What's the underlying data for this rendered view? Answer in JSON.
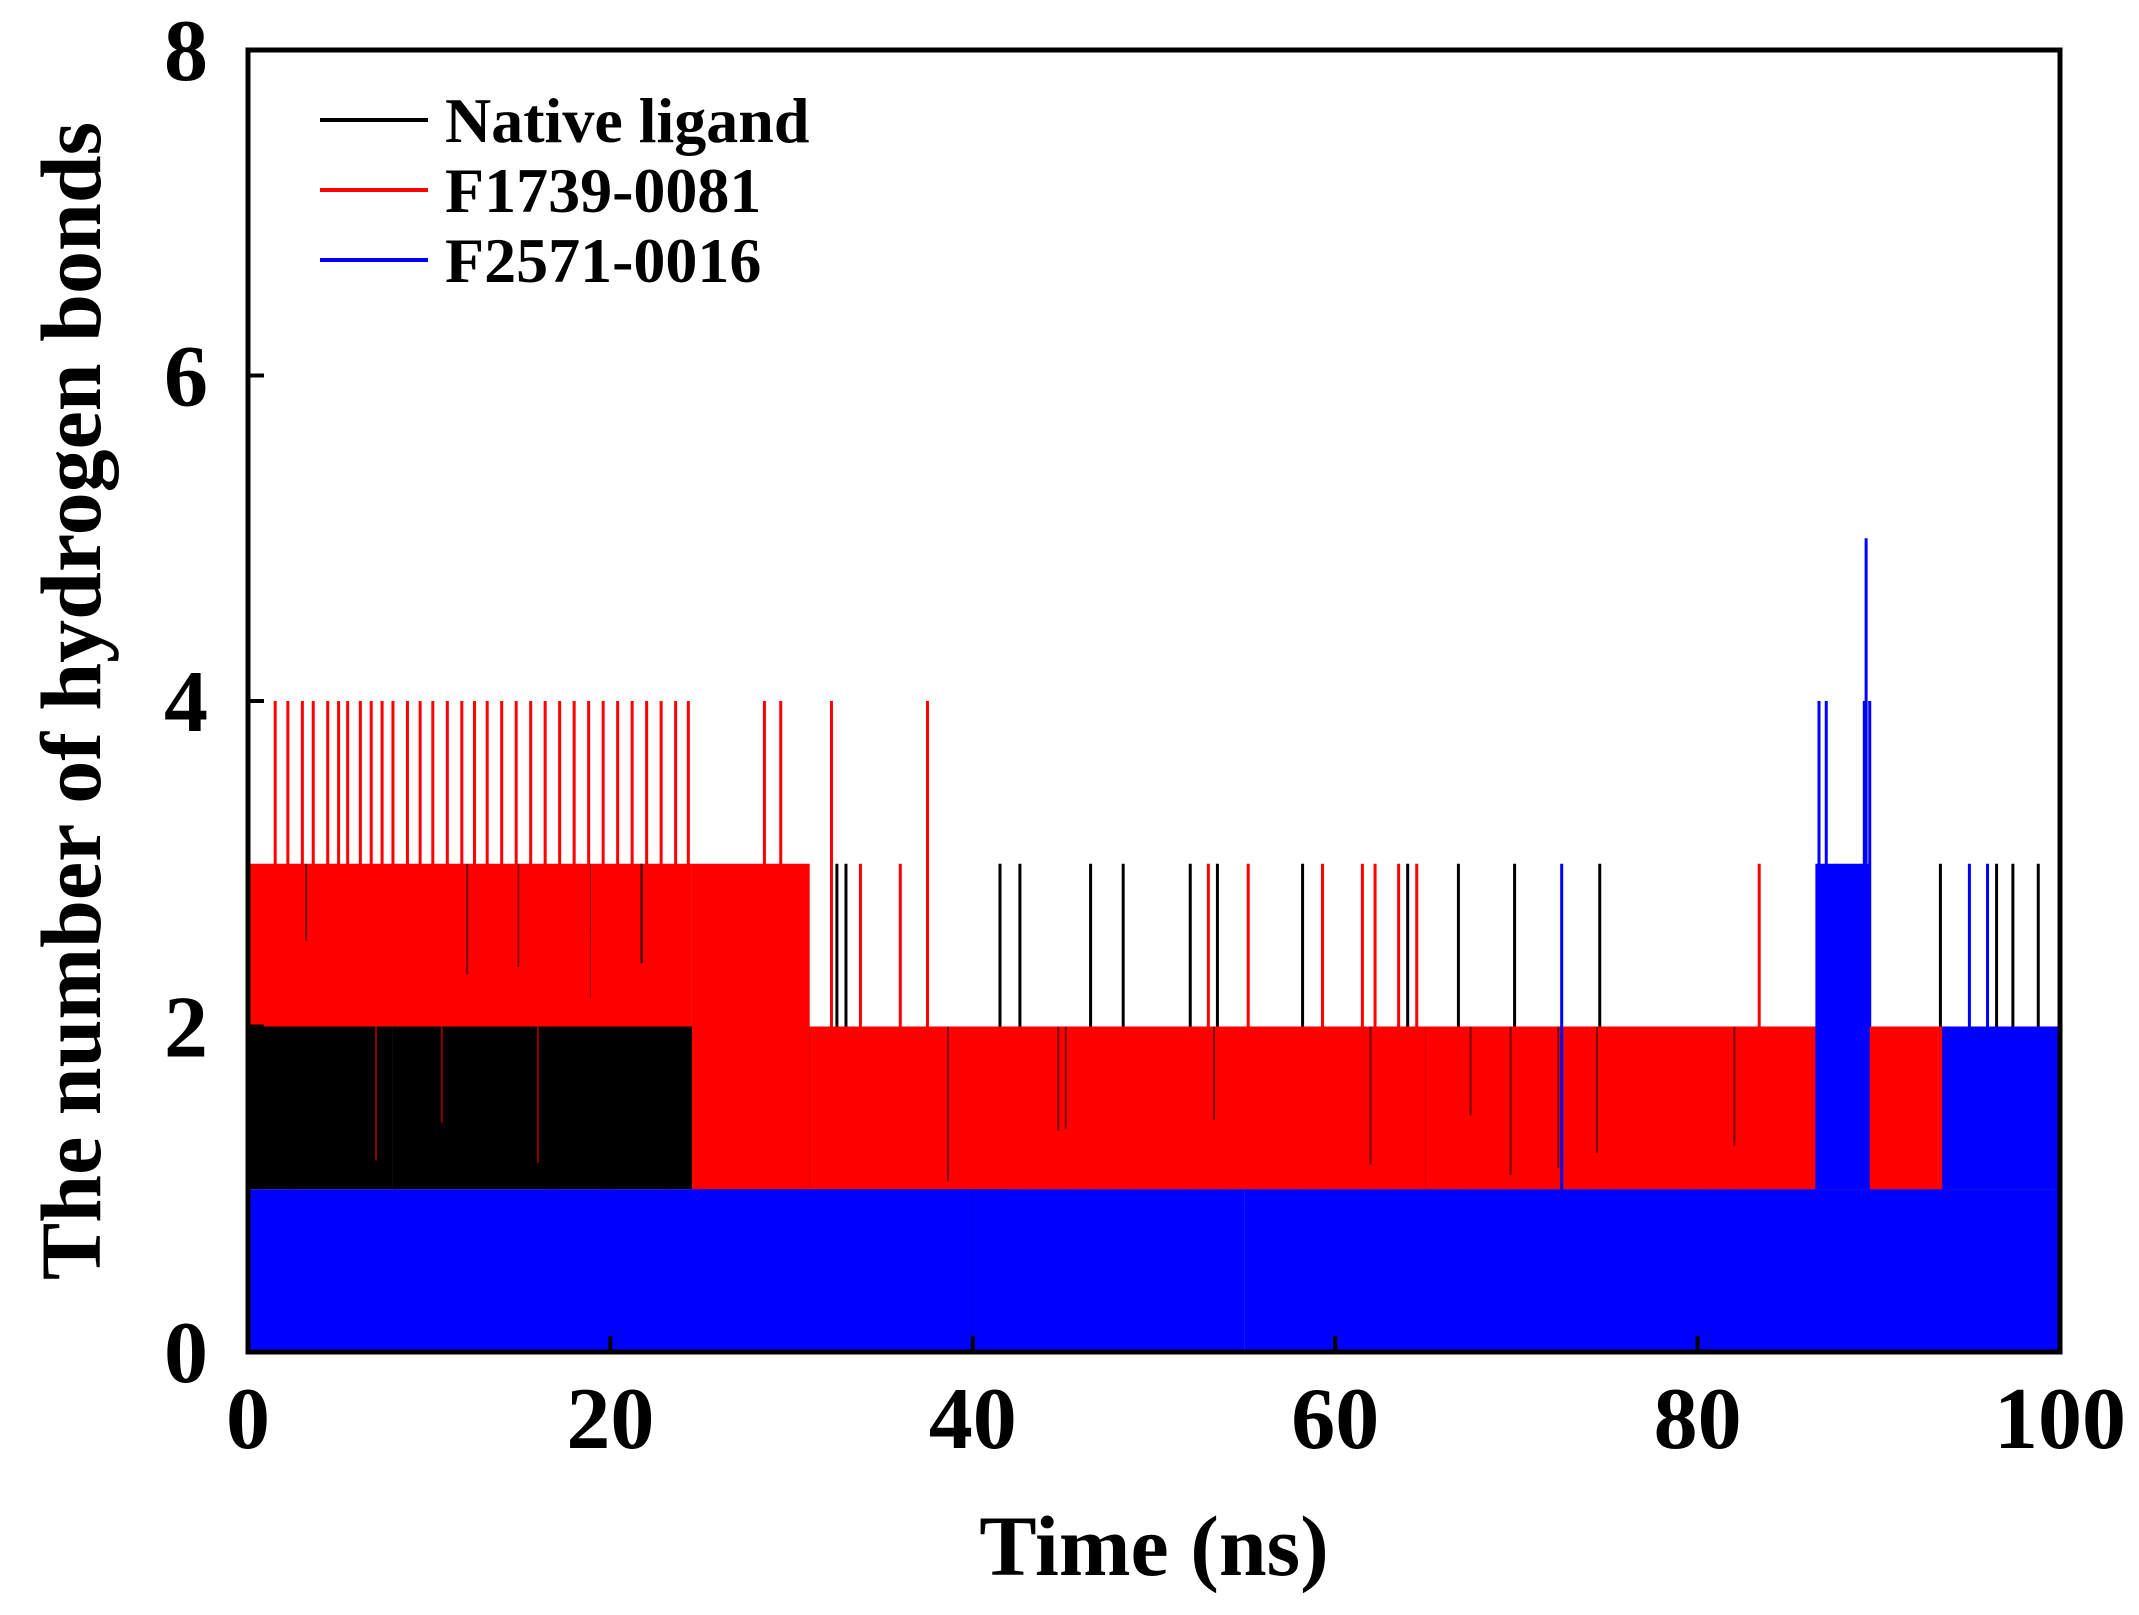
{
  "chart_data": {
    "type": "line",
    "title": "",
    "xlabel": "Time (ns)",
    "ylabel": "The number of hydrogen bonds",
    "xlim": [
      0,
      100
    ],
    "ylim": [
      0,
      8
    ],
    "xticks": [
      0,
      20,
      40,
      60,
      80,
      100
    ],
    "yticks": [
      0,
      2,
      4,
      6,
      8
    ],
    "xtick_labels": [
      "0",
      "20",
      "40",
      "60",
      "80",
      "100"
    ],
    "ytick_labels": [
      "0",
      "2",
      "4",
      "6",
      "8"
    ],
    "grid": false,
    "legend_position": "top-left",
    "series": [
      {
        "name": "Native ligand",
        "color": "#000000",
        "segments": [
          {
            "x": [
              0,
              8
            ],
            "low": 1,
            "high": 2
          },
          {
            "x": [
              8,
              25
            ],
            "low": 1,
            "high": 2
          },
          {
            "x": [
              25,
              42
            ],
            "low": 0,
            "high": 2
          },
          {
            "x": [
              42,
              55
            ],
            "low": 1,
            "high": 2
          },
          {
            "x": [
              55,
              94
            ],
            "low": 1,
            "high": 2
          },
          {
            "x": [
              94,
              100
            ],
            "low": 1,
            "high": 2
          }
        ],
        "spikes": [
          {
            "x": 32.5,
            "y": 3
          },
          {
            "x": 33.0,
            "y": 3
          },
          {
            "x": 41.5,
            "y": 3
          },
          {
            "x": 42.6,
            "y": 3
          },
          {
            "x": 46.5,
            "y": 3
          },
          {
            "x": 48.3,
            "y": 3
          },
          {
            "x": 52.0,
            "y": 3
          },
          {
            "x": 53.5,
            "y": 3
          },
          {
            "x": 58.2,
            "y": 3
          },
          {
            "x": 64.0,
            "y": 3
          },
          {
            "x": 66.8,
            "y": 3
          },
          {
            "x": 69.9,
            "y": 3
          },
          {
            "x": 74.6,
            "y": 3
          },
          {
            "x": 93.4,
            "y": 3
          },
          {
            "x": 96.5,
            "y": 3
          },
          {
            "x": 97.4,
            "y": 3
          },
          {
            "x": 98.8,
            "y": 3
          }
        ]
      },
      {
        "name": "F1739-0081",
        "color": "#ff0000",
        "segments": [
          {
            "x": [
              0,
              24.5
            ],
            "low": 2,
            "high": 3
          },
          {
            "x": [
              24.5,
              31
            ],
            "low": 1,
            "high": 3
          },
          {
            "x": [
              31,
              65
            ],
            "low": 1,
            "high": 2
          },
          {
            "x": [
              65,
              94
            ],
            "low": 1,
            "high": 2
          }
        ],
        "spikes": [
          {
            "x": 1.5,
            "y": 4
          },
          {
            "x": 2.2,
            "y": 4
          },
          {
            "x": 3.0,
            "y": 4
          },
          {
            "x": 3.6,
            "y": 4
          },
          {
            "x": 4.4,
            "y": 4
          },
          {
            "x": 5.0,
            "y": 4
          },
          {
            "x": 5.5,
            "y": 4
          },
          {
            "x": 6.2,
            "y": 4
          },
          {
            "x": 6.8,
            "y": 4
          },
          {
            "x": 7.4,
            "y": 4
          },
          {
            "x": 8.0,
            "y": 4
          },
          {
            "x": 8.8,
            "y": 4
          },
          {
            "x": 9.5,
            "y": 4
          },
          {
            "x": 10.2,
            "y": 4
          },
          {
            "x": 11.0,
            "y": 4
          },
          {
            "x": 11.8,
            "y": 4
          },
          {
            "x": 12.5,
            "y": 4
          },
          {
            "x": 13.2,
            "y": 4
          },
          {
            "x": 14.0,
            "y": 4
          },
          {
            "x": 14.8,
            "y": 4
          },
          {
            "x": 15.6,
            "y": 4
          },
          {
            "x": 16.4,
            "y": 4
          },
          {
            "x": 17.2,
            "y": 4
          },
          {
            "x": 18.0,
            "y": 4
          },
          {
            "x": 18.8,
            "y": 4
          },
          {
            "x": 19.6,
            "y": 4
          },
          {
            "x": 20.4,
            "y": 4
          },
          {
            "x": 21.2,
            "y": 4
          },
          {
            "x": 22.0,
            "y": 4
          },
          {
            "x": 22.8,
            "y": 4
          },
          {
            "x": 23.6,
            "y": 4
          },
          {
            "x": 24.3,
            "y": 4
          },
          {
            "x": 28.5,
            "y": 4
          },
          {
            "x": 29.4,
            "y": 4
          },
          {
            "x": 32.2,
            "y": 4
          },
          {
            "x": 37.5,
            "y": 4
          },
          {
            "x": 33.8,
            "y": 3
          },
          {
            "x": 36.0,
            "y": 3
          },
          {
            "x": 53.0,
            "y": 3
          },
          {
            "x": 55.2,
            "y": 3
          },
          {
            "x": 59.3,
            "y": 3
          },
          {
            "x": 61.5,
            "y": 3
          },
          {
            "x": 62.2,
            "y": 3
          },
          {
            "x": 63.5,
            "y": 3
          },
          {
            "x": 64.5,
            "y": 3
          },
          {
            "x": 83.4,
            "y": 3
          }
        ]
      },
      {
        "name": "F2571-0016",
        "color": "#0000ff",
        "segments": [
          {
            "x": [
              0,
              25
            ],
            "low": 0,
            "high": 1
          },
          {
            "x": [
              25,
              40
            ],
            "low": 0,
            "high": 1
          },
          {
            "x": [
              40,
              55
            ],
            "low": 0,
            "high": 1
          },
          {
            "x": [
              55,
              100
            ],
            "low": 0,
            "high": 1
          },
          {
            "x": [
              86.5,
              89.5
            ],
            "low": 1,
            "high": 3
          },
          {
            "x": [
              93.5,
              100
            ],
            "low": 1,
            "high": 2
          }
        ],
        "spikes": [
          {
            "x": 86.7,
            "y": 4
          },
          {
            "x": 87.1,
            "y": 4
          },
          {
            "x": 89.2,
            "y": 4
          },
          {
            "x": 89.5,
            "y": 4
          },
          {
            "x": 89.3,
            "y": 5
          },
          {
            "x": 72.5,
            "y": 3
          },
          {
            "x": 95.0,
            "y": 3
          },
          {
            "x": 96.0,
            "y": 3
          }
        ]
      }
    ]
  }
}
